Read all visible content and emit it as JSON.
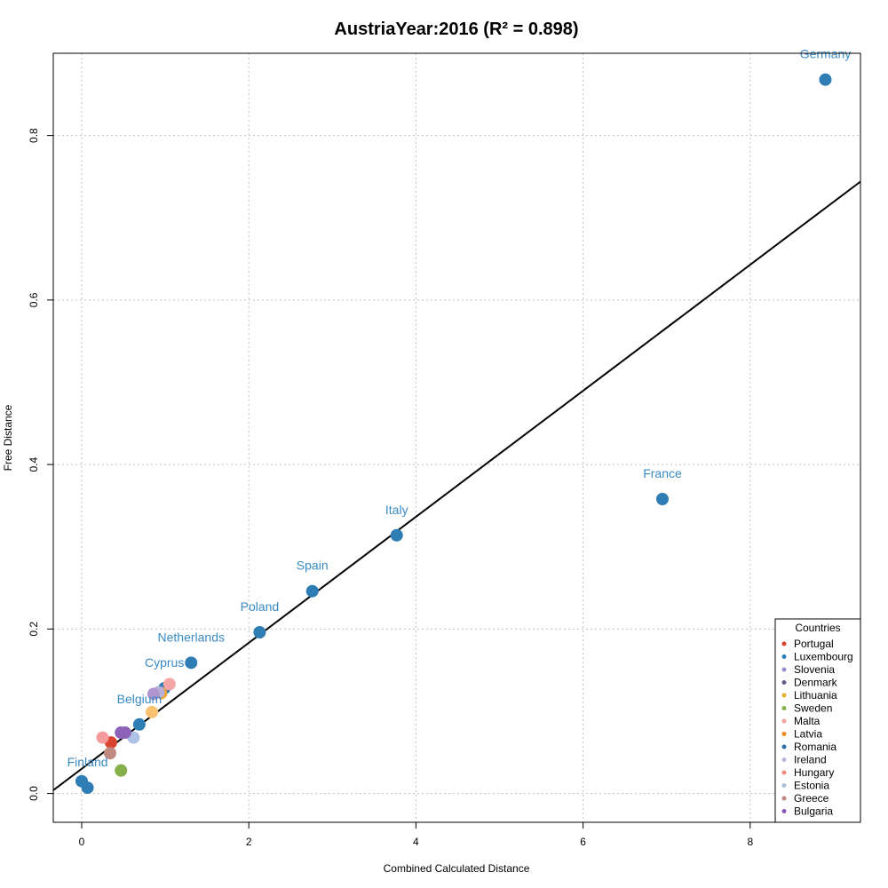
{
  "chart_data": {
    "type": "scatter",
    "title": "AustriaYear:2016 (R² = 0.898)",
    "xlabel": "Combined Calculated Distance",
    "ylabel": "Free Distance",
    "xlim": [
      -0.34,
      9.32
    ],
    "ylim": [
      -0.035,
      0.9
    ],
    "x_ticks": [
      0,
      2,
      4,
      6,
      8
    ],
    "y_ticks": [
      0.0,
      0.2,
      0.4,
      0.6,
      0.8
    ],
    "grid": true,
    "regression_line": {
      "x": [
        -0.34,
        9.32
      ],
      "y": [
        0.004,
        0.744
      ],
      "color": "#000000"
    },
    "point_label_color": "#3a8ac2",
    "labeled_points": [
      {
        "label": "Germany",
        "x": 8.9,
        "y": 0.868
      },
      {
        "label": "France",
        "x": 6.95,
        "y": 0.358
      },
      {
        "label": "Italy",
        "x": 3.77,
        "y": 0.314
      },
      {
        "label": "Spain",
        "x": 2.76,
        "y": 0.246
      },
      {
        "label": "Poland",
        "x": 2.13,
        "y": 0.196
      },
      {
        "label": "Netherlands",
        "x": 1.31,
        "y": 0.159
      },
      {
        "label": "Cyprus",
        "x": 0.99,
        "y": 0.128
      },
      {
        "label": "Belgium",
        "x": 0.69,
        "y": 0.084
      },
      {
        "label": "Finland",
        "x": 0.07,
        "y": 0.007
      }
    ],
    "points": [
      {
        "x": 8.9,
        "y": 0.868,
        "color": "#2f7db5"
      },
      {
        "x": 6.95,
        "y": 0.358,
        "color": "#2f7db5"
      },
      {
        "x": 3.77,
        "y": 0.314,
        "color": "#2f7db5"
      },
      {
        "x": 2.76,
        "y": 0.246,
        "color": "#2f7db5"
      },
      {
        "x": 2.13,
        "y": 0.196,
        "color": "#2f7db5"
      },
      {
        "x": 1.31,
        "y": 0.159,
        "color": "#2f7db5"
      },
      {
        "x": 0.99,
        "y": 0.128,
        "color": "#2f7db5"
      },
      {
        "x": 0.69,
        "y": 0.084,
        "color": "#2f7db5"
      },
      {
        "x": 0.0,
        "y": 0.015,
        "color": "#2f7db5"
      },
      {
        "x": 0.07,
        "y": 0.007,
        "color": "#2f7db5"
      },
      {
        "x": 0.95,
        "y": 0.122,
        "color": "#f2a230"
      },
      {
        "x": 1.05,
        "y": 0.133,
        "color": "#f4a5a5"
      },
      {
        "x": 0.92,
        "y": 0.123,
        "color": "#b8b0d8"
      },
      {
        "x": 0.86,
        "y": 0.121,
        "color": "#b095d0"
      },
      {
        "x": 0.84,
        "y": 0.099,
        "color": "#f8c271"
      },
      {
        "x": 0.62,
        "y": 0.068,
        "color": "#aec2e6"
      },
      {
        "x": 0.52,
        "y": 0.074,
        "color": "#8c63b8"
      },
      {
        "x": 0.47,
        "y": 0.074,
        "color": "#8c63b8"
      },
      {
        "x": 0.35,
        "y": 0.062,
        "color": "#d9432f"
      },
      {
        "x": 0.25,
        "y": 0.068,
        "color": "#f69b9b"
      },
      {
        "x": 0.34,
        "y": 0.049,
        "color": "#c08a82"
      },
      {
        "x": 0.47,
        "y": 0.028,
        "color": "#86b04a"
      }
    ],
    "legend": {
      "title": "Countries",
      "position": "bottom-right",
      "entries": [
        {
          "name": "Portugal",
          "color": "#d9432f"
        },
        {
          "name": "Luxembourg",
          "color": "#2f7db5"
        },
        {
          "name": "Slovenia",
          "color": "#9a8ccc"
        },
        {
          "name": "Denmark",
          "color": "#6a5a8c"
        },
        {
          "name": "Lithuania",
          "color": "#e8b030"
        },
        {
          "name": "Sweden",
          "color": "#86b04a"
        },
        {
          "name": "Malta",
          "color": "#f6a0a0"
        },
        {
          "name": "Latvia",
          "color": "#f28a1e"
        },
        {
          "name": "Romania",
          "color": "#2f6fa5"
        },
        {
          "name": "Ireland",
          "color": "#b8b8d8"
        },
        {
          "name": "Hungary",
          "color": "#f28a7a"
        },
        {
          "name": "Estonia",
          "color": "#aac0e0"
        },
        {
          "name": "Greece",
          "color": "#c08a82"
        },
        {
          "name": "Bulgaria",
          "color": "#8c55b8"
        }
      ]
    }
  }
}
